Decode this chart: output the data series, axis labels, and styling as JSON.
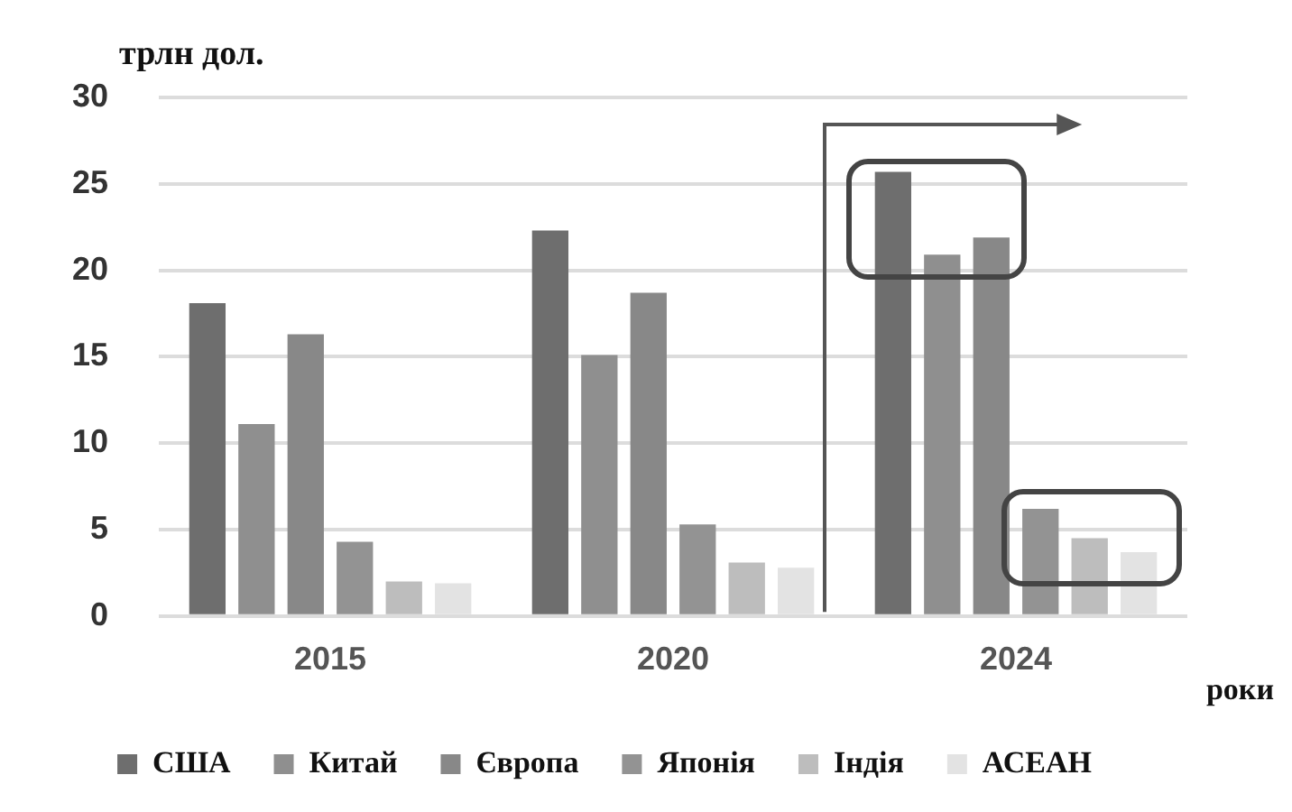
{
  "chart_data": {
    "type": "bar",
    "ylabel": "трлн дол.",
    "xlabel": "роки",
    "categories": [
      "2015",
      "2020",
      "2024"
    ],
    "series": [
      {
        "name": "США",
        "color": "#6e6e6e",
        "values": [
          18.1,
          22.3,
          25.7
        ]
      },
      {
        "name": "Китай",
        "color": "#8f8f8f",
        "values": [
          11.1,
          15.1,
          20.9
        ]
      },
      {
        "name": "Європа",
        "color": "#888888",
        "values": [
          16.3,
          18.7,
          21.9
        ]
      },
      {
        "name": "Японія",
        "color": "#939393",
        "values": [
          4.3,
          5.3,
          6.2
        ]
      },
      {
        "name": "Індія",
        "color": "#bdbdbd",
        "values": [
          2.0,
          3.1,
          4.5
        ]
      },
      {
        "name": "АСЕАН",
        "color": "#e3e3e3",
        "values": [
          1.9,
          2.8,
          3.7
        ]
      }
    ],
    "ylim": [
      0,
      30
    ],
    "yticks": [
      0,
      5,
      10,
      15,
      20,
      25,
      30
    ],
    "grid": "y",
    "legend": "bottom"
  }
}
